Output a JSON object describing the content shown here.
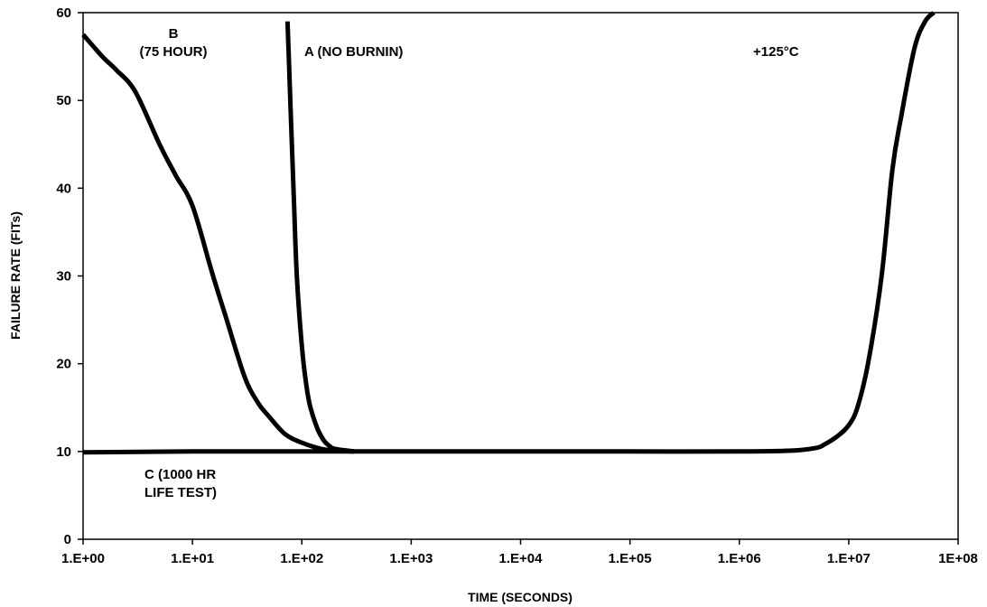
{
  "chart_data": {
    "type": "line",
    "xlabel": "TIME (SECONDS)",
    "ylabel": "FAILURE RATE (FITs)",
    "x_scale": "log",
    "xlim": [
      1,
      100000000
    ],
    "ylim": [
      0,
      60
    ],
    "x_tick_values": [
      1,
      10,
      100,
      1000,
      10000,
      100000,
      1000000,
      10000000,
      100000000
    ],
    "x_tick_labels": [
      "1.E+00",
      "1.E+01",
      "1.E+02",
      "1.E+03",
      "1.E+04",
      "1.E+05",
      "1.E+06",
      "1.E+07",
      "1E+08"
    ],
    "y_ticks": [
      0,
      10,
      20,
      30,
      40,
      50,
      60
    ],
    "grid": false,
    "annotations": [
      {
        "lines": [
          "B",
          "(75 HOUR)"
        ]
      },
      {
        "lines": [
          "A (NO BURNIN)"
        ]
      },
      {
        "lines": [
          "+125°C"
        ]
      },
      {
        "lines": [
          "C (1000 HR",
          "LIFE TEST)"
        ]
      }
    ],
    "series": [
      {
        "x": [
          1,
          1.5,
          2,
          3,
          5,
          7,
          10,
          15,
          20,
          30,
          40,
          50,
          70,
          100,
          150,
          200,
          300
        ],
        "y": [
          57.5,
          55,
          53.5,
          51,
          45,
          41.5,
          38,
          30.5,
          25.5,
          18.5,
          15.5,
          14,
          12,
          11,
          10.3,
          10.1,
          10
        ]
      },
      {
        "x": [
          74,
          76,
          80,
          85,
          90,
          100,
          110,
          120,
          140,
          160,
          180,
          200,
          300
        ],
        "y": [
          59,
          55,
          47,
          38,
          30,
          22,
          17.5,
          15,
          12.5,
          11.2,
          10.6,
          10.3,
          10
        ]
      },
      {
        "x": [
          1,
          10,
          100,
          1000,
          10000,
          100000,
          1000000,
          3000000,
          5000000,
          6000000,
          8000000,
          10000000,
          12000000,
          15000000,
          20000000,
          25000000,
          30000000,
          40000000,
          50000000,
          60000000
        ],
        "y": [
          9.9,
          10,
          10,
          10,
          10,
          10,
          10,
          10.1,
          10.4,
          10.8,
          11.8,
          13,
          15,
          20,
          30,
          42,
          48,
          56,
          59,
          60
        ]
      }
    ]
  }
}
